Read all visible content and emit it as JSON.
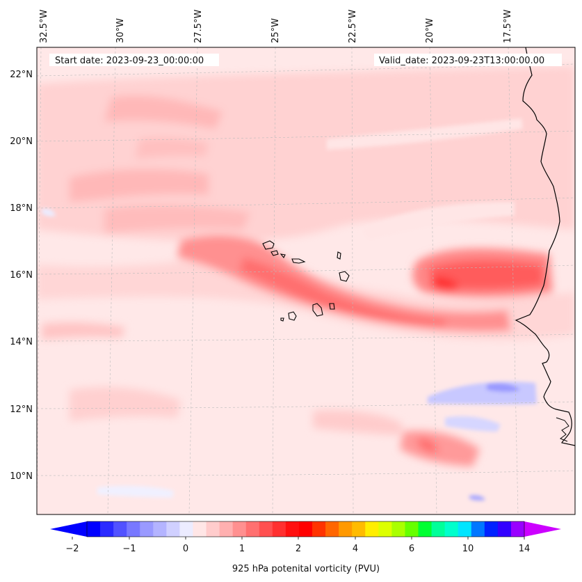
{
  "header": {
    "start_label": "Start date: 2023-09-23_00:00:00",
    "valid_label": "Valid_date: 2023-09-23T13:00:00.00"
  },
  "map": {
    "lon_labels": [
      "32.5°W",
      "30°W",
      "27.5°W",
      "25°W",
      "22.5°W",
      "20°W",
      "17.5°W"
    ],
    "lat_labels": [
      "22°N",
      "20°N",
      "18°N",
      "16°N",
      "14°N",
      "12°N",
      "10°N"
    ],
    "coastline_color": "#000000",
    "gridline_color": "#bbbbbb"
  },
  "colorbar": {
    "label": "925 hPa potenital vorticity (PVU)",
    "ticks": [
      "−2",
      "−1",
      "0",
      "1",
      "2",
      "4",
      "6",
      "10",
      "14"
    ],
    "colors": [
      "#0000ff",
      "#2a2aff",
      "#5252ff",
      "#7878ff",
      "#9a9aff",
      "#b4b4ff",
      "#d0d0ff",
      "#ececff",
      "#ffe6e6",
      "#ffcccc",
      "#ffb0b0",
      "#ff9090",
      "#ff7070",
      "#ff5050",
      "#ff3030",
      "#ff1010",
      "#ff0000",
      "#ff3300",
      "#ff6600",
      "#ff9900",
      "#ffbb00",
      "#ffee00",
      "#ddff00",
      "#aaff00",
      "#66ff00",
      "#00ff33",
      "#00ff99",
      "#00ffcc",
      "#00e5ff",
      "#0077ff",
      "#0022ff",
      "#3300ff",
      "#9900ff"
    ],
    "extend_low": "#0000ff",
    "extend_high": "#cc00ff"
  }
}
